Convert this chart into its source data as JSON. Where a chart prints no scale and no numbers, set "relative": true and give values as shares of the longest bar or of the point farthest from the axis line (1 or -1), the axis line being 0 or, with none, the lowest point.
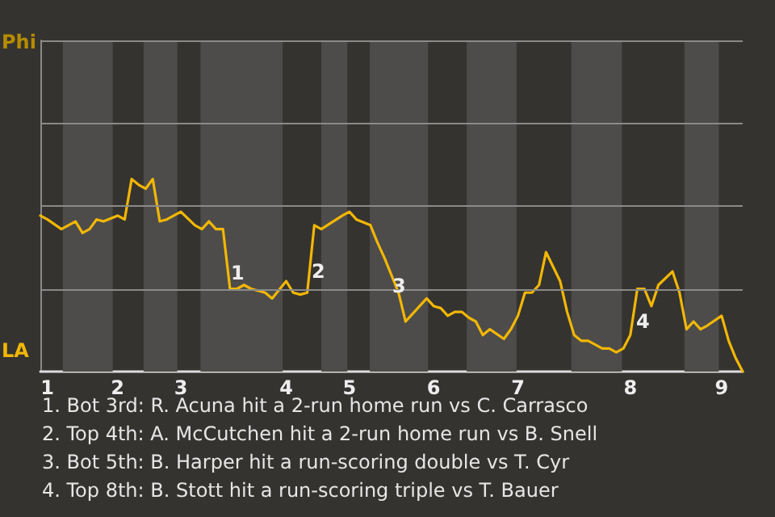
{
  "chart_data": {
    "type": "line",
    "relative": true,
    "categories": [
      null,
      "1",
      null,
      null,
      null,
      null,
      null,
      null,
      null,
      null,
      null,
      "2",
      null,
      null,
      null,
      null,
      null,
      null,
      null,
      null,
      "3",
      null,
      null,
      null,
      null,
      null,
      null,
      null,
      null,
      null,
      null,
      null,
      null,
      null,
      null,
      "4",
      null,
      null,
      null,
      null,
      null,
      null,
      null,
      null,
      "5",
      null,
      null,
      null,
      null,
      null,
      null,
      null,
      null,
      null,
      null,
      null,
      "6",
      null,
      null,
      null,
      null,
      null,
      null,
      null,
      null,
      null,
      null,
      null,
      "7",
      null,
      null,
      null,
      null,
      null,
      null,
      null,
      null,
      null,
      null,
      null,
      null,
      null,
      null,
      null,
      "8",
      null,
      null,
      null,
      null,
      null,
      null,
      null,
      null,
      null,
      null,
      null,
      null,
      "9",
      null,
      null,
      null
    ],
    "series": [
      {
        "color": "#f2b705",
        "values": [
          0.81,
          0.79,
          null,
          0.74,
          null,
          0.78,
          0.72,
          0.74,
          0.79,
          0.78,
          null,
          0.81,
          0.79,
          1,
          0.97,
          0.95,
          1,
          0.78,
          0.79,
          null,
          0.83,
          null,
          0.76,
          0.74,
          0.78,
          0.74,
          0.74,
          0.43,
          0.43,
          0.45,
          0.43,
          null,
          0.41,
          0.38,
          null,
          0.47,
          0.41,
          0.4,
          0.41,
          0.76,
          0.74,
          null,
          null,
          0.81,
          0.83,
          0.79,
          null,
          0.76,
          0.67,
          0.59,
          null,
          0.41,
          0.26,
          null,
          null,
          0.38,
          0.34,
          0.33,
          0.29,
          0.31,
          0.31,
          0.28,
          0.26,
          0.19,
          0.22,
          null,
          0.17,
          0.22,
          0.29,
          0.41,
          0.41,
          0.45,
          0.62,
          null,
          0.47,
          0.31,
          0.19,
          0.16,
          0.16,
          null,
          0.12,
          0.12,
          0.1,
          0.12,
          0.19,
          0.43,
          0.43,
          0.34,
          0.45,
          null,
          0.52,
          0.41,
          0.22,
          0.26,
          0.22,
          0.24,
          null,
          0.29,
          0.16,
          0.07,
          0
        ]
      }
    ],
    "marker": "none",
    "ref_lines": [
      {
        "axis": "y",
        "value": 0.43,
        "color": "#8a8a8a"
      },
      {
        "axis": "y",
        "value": 0.86,
        "color": "#8a8a8a"
      },
      {
        "axis": "y",
        "value": 1.29,
        "color": "#8a8a8a"
      },
      {
        "axis": "y",
        "value": 1.72,
        "color": "#8a8a8a"
      }
    ],
    "annotations": [
      "Phi",
      "LA",
      "1",
      "2",
      "3",
      "4",
      "1. Bot 3rd: R. Acuna hit a 2-run home run vs C. Carrasco",
      "2. Top 4th: A. McCutchen hit a 2-run home run vs B. Snell",
      "3. Bot 5th: B. Harper hit a run-scoring double vs T. Cyr",
      "4. Top 8th: B. Stott hit a run-scoring triple vs T. Bauer"
    ]
  }
}
